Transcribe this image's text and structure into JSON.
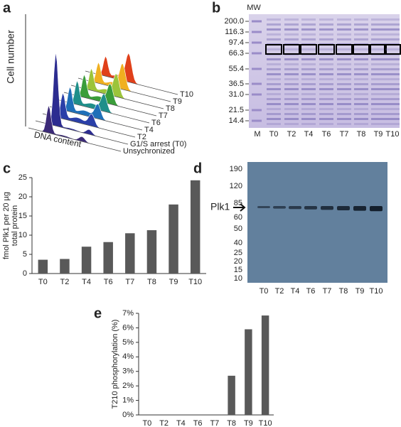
{
  "panels": {
    "a": {
      "letter": "a",
      "y_label": "Cell number",
      "x_label": "DNA content",
      "traces": [
        "Unsychronized",
        "G1/S arrest (T0)",
        "T2",
        "T4",
        "T6",
        "T7",
        "T8",
        "T9",
        "T10"
      ]
    },
    "b": {
      "letter": "b",
      "mw_title": "MW",
      "mw_labels": [
        "200.0",
        "116.3",
        "97.4",
        "66.3",
        "55.4",
        "36.5",
        "31.0",
        "21.5",
        "14.4"
      ],
      "lanes": [
        "M",
        "T0",
        "T2",
        "T4",
        "T6",
        "T7",
        "T8",
        "T9",
        "T10"
      ]
    },
    "c": {
      "letter": "c"
    },
    "d": {
      "letter": "d",
      "band_label": "Plk1",
      "mw_labels": [
        190,
        120,
        85,
        60,
        50,
        40,
        25,
        20,
        15,
        10
      ],
      "lanes": [
        "T0",
        "T2",
        "T4",
        "T6",
        "T7",
        "T8",
        "T9",
        "T10"
      ]
    },
    "e": {
      "letter": "e"
    }
  },
  "chart_data": [
    {
      "type": "bar",
      "ylabel": [
        "fmol Plk1 per 20 µg",
        "total protein"
      ],
      "categories": [
        "T0",
        "T2",
        "T4",
        "T6",
        "T7",
        "T8",
        "T9",
        "T10"
      ],
      "values": [
        3.6,
        3.8,
        7.0,
        8.2,
        10.5,
        11.3,
        18.0,
        24.3
      ],
      "color": "#595959",
      "ylim": [
        0,
        25
      ],
      "yticks": [
        0,
        5,
        10,
        15,
        20,
        25
      ]
    },
    {
      "type": "bar",
      "ylabel": "T210 phosphorylation (%)",
      "categories": [
        "T0",
        "T2",
        "T4",
        "T6",
        "T7",
        "T8",
        "T9",
        "T10"
      ],
      "values": [
        0,
        0,
        0,
        0,
        0,
        2.7,
        5.9,
        6.85
      ],
      "color": "#595959",
      "ylim": [
        0,
        7
      ],
      "yticks": [
        {
          "value": 0,
          "label": "0%"
        },
        {
          "value": 1,
          "label": "1%"
        },
        {
          "value": 2,
          "label": "2%"
        },
        {
          "value": 3,
          "label": "3%"
        },
        {
          "value": 4,
          "label": "4%"
        },
        {
          "value": 5,
          "label": "5%"
        },
        {
          "value": 6,
          "label": "6%"
        },
        {
          "value": 7,
          "label": "7%"
        }
      ]
    }
  ]
}
